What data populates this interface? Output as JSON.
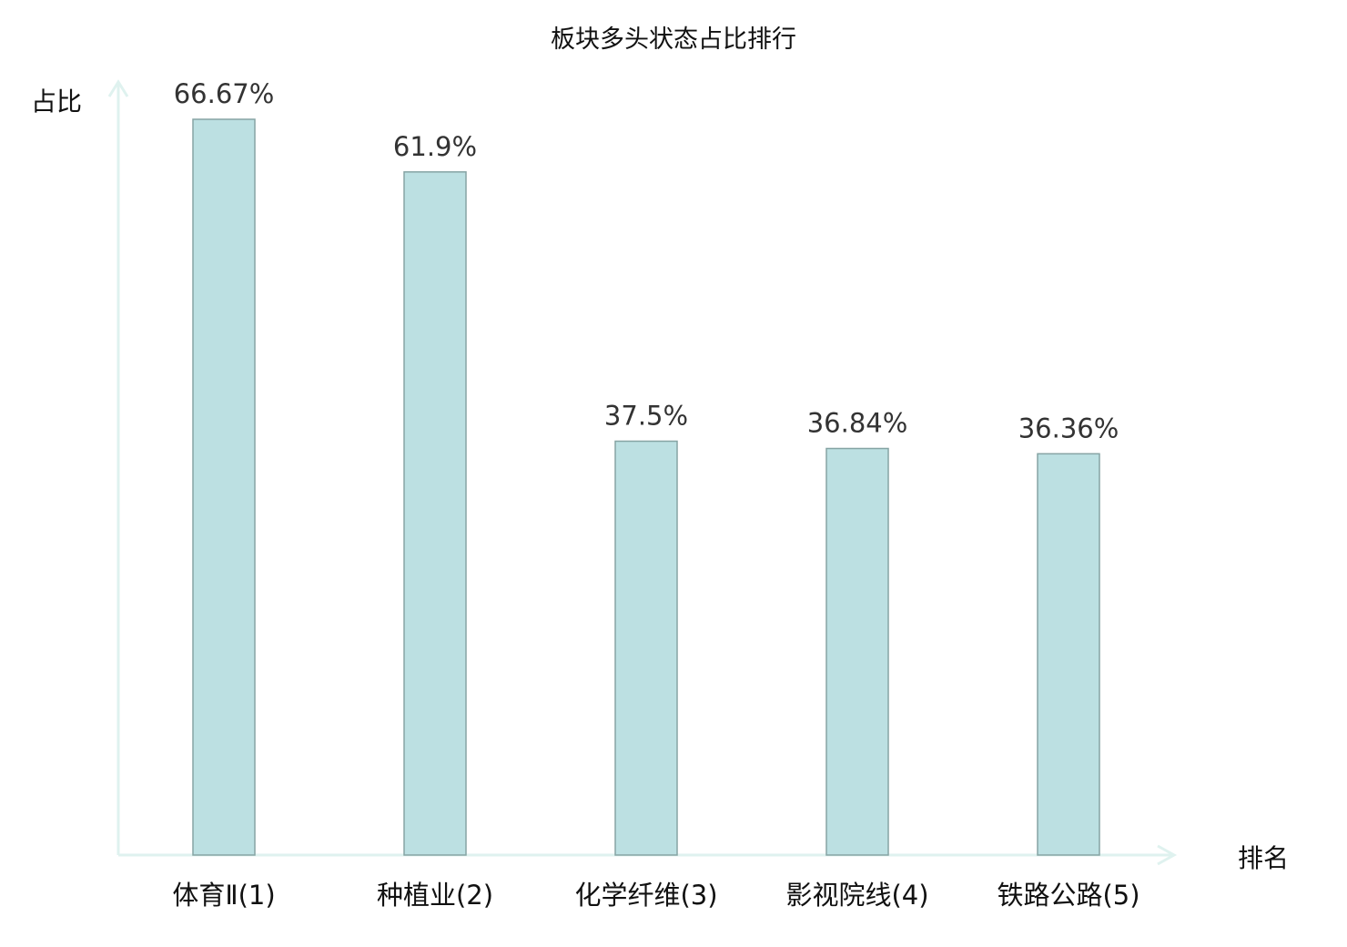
{
  "chart_data": {
    "type": "bar",
    "title": "板块多头状态占比排行",
    "xlabel": "排名",
    "ylabel": "占比",
    "categories": [
      "体育Ⅱ(1)",
      "种植业(2)",
      "化学纤维(3)",
      "影视院线(4)",
      "铁路公路(5)"
    ],
    "values": [
      66.67,
      61.9,
      37.5,
      36.84,
      36.36
    ],
    "value_labels": [
      "66.67%",
      "61.9%",
      "37.5%",
      "36.84%",
      "36.36%"
    ],
    "highlight_index": 4,
    "ylim": [
      0,
      66.67
    ],
    "grid": false,
    "colors": {
      "bar_fill": "#bce0e2",
      "bar_stroke": "#86a4a4",
      "axis": "#dff2ef",
      "highlight_label": "#ff0000",
      "label": "#111111",
      "value_label": "#333333"
    }
  }
}
